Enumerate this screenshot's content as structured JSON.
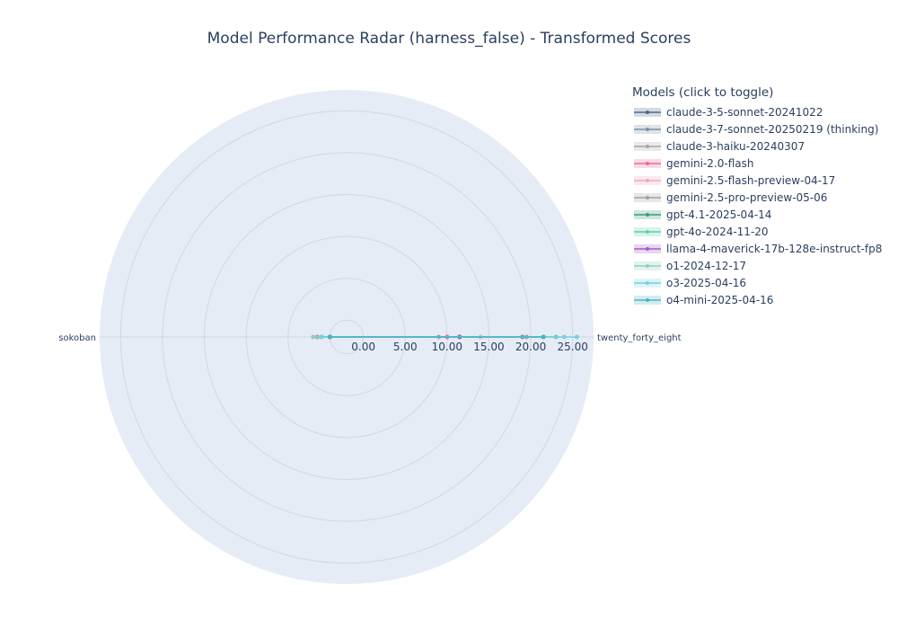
{
  "chart_data": {
    "type": "radar",
    "title": "Model Performance Radar (harness_false) - Transformed Scores",
    "axes": [
      "twenty_forty_eight",
      "sokoban"
    ],
    "radial_ticks": [
      "0.00",
      "5.00",
      "10.00",
      "15.00",
      "20.00",
      "25.00"
    ],
    "radial_range": [
      -2,
      27.5
    ],
    "legend_title": "Models (click to toggle)",
    "series": [
      {
        "name": "claude-3-5-sonnet-20241022",
        "color": "#4c6a8a",
        "values": [
          11.5,
          0.0
        ]
      },
      {
        "name": "claude-3-7-sonnet-20250219 (thinking)",
        "color": "#7a8fa6",
        "values": [
          19.0,
          1.0
        ]
      },
      {
        "name": "claude-3-haiku-20240307",
        "color": "#a6a6a6",
        "values": [
          9.0,
          0.0
        ]
      },
      {
        "name": "gemini-2.0-flash",
        "color": "#e86b96",
        "values": [
          10.0,
          0.0
        ]
      },
      {
        "name": "gemini-2.5-flash-preview-04-17",
        "color": "#f0a8c0",
        "values": [
          14.0,
          1.0
        ]
      },
      {
        "name": "gemini-2.5-pro-preview-05-06",
        "color": "#a0a0a0",
        "values": [
          19.5,
          1.5
        ]
      },
      {
        "name": "gpt-4.1-2025-04-14",
        "color": "#3a9a7e",
        "values": [
          21.5,
          0.0
        ]
      },
      {
        "name": "gpt-4o-2024-11-20",
        "color": "#5fcfae",
        "values": [
          23.0,
          0.0
        ]
      },
      {
        "name": "llama-4-maverick-17b-128e-instruct-fp8",
        "color": "#a45bc6",
        "values": [
          11.5,
          0.0
        ]
      },
      {
        "name": "o1-2024-12-17",
        "color": "#8fcfc0",
        "values": [
          24.0,
          2.0
        ]
      },
      {
        "name": "o3-2025-04-16",
        "color": "#77d0de",
        "values": [
          25.5,
          1.0
        ]
      },
      {
        "name": "o4-mini-2025-04-16",
        "color": "#4bb3c3",
        "values": [
          21.5,
          0.0
        ]
      }
    ]
  }
}
